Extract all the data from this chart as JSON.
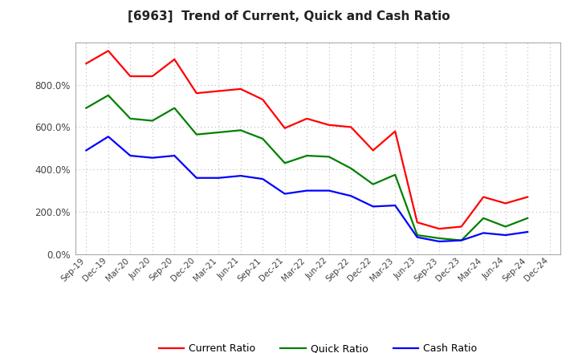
{
  "title": "[6963]  Trend of Current, Quick and Cash Ratio",
  "labels": [
    "Sep-19",
    "Dec-19",
    "Mar-20",
    "Jun-20",
    "Sep-20",
    "Dec-20",
    "Mar-21",
    "Jun-21",
    "Sep-21",
    "Dec-21",
    "Mar-22",
    "Jun-22",
    "Sep-22",
    "Dec-22",
    "Mar-23",
    "Jun-23",
    "Sep-23",
    "Dec-23",
    "Mar-24",
    "Jun-24",
    "Sep-24",
    "Dec-24"
  ],
  "current_ratio": [
    900,
    960,
    840,
    840,
    920,
    760,
    770,
    780,
    730,
    595,
    640,
    610,
    600,
    490,
    580,
    150,
    120,
    130,
    270,
    240,
    270,
    null
  ],
  "quick_ratio": [
    690,
    750,
    640,
    630,
    690,
    565,
    575,
    585,
    545,
    430,
    465,
    460,
    405,
    330,
    375,
    90,
    75,
    65,
    170,
    130,
    170,
    null
  ],
  "cash_ratio": [
    490,
    555,
    465,
    455,
    465,
    360,
    360,
    370,
    355,
    285,
    300,
    300,
    275,
    225,
    230,
    80,
    60,
    65,
    100,
    90,
    105,
    null
  ],
  "current_color": "#ff0000",
  "quick_color": "#008000",
  "cash_color": "#0000ff",
  "bg_color": "#ffffff",
  "grid_color": "#bbbbbb",
  "ylim": [
    0,
    1000
  ],
  "yticks": [
    0,
    200,
    400,
    600,
    800
  ],
  "legend_labels": [
    "Current Ratio",
    "Quick Ratio",
    "Cash Ratio"
  ]
}
